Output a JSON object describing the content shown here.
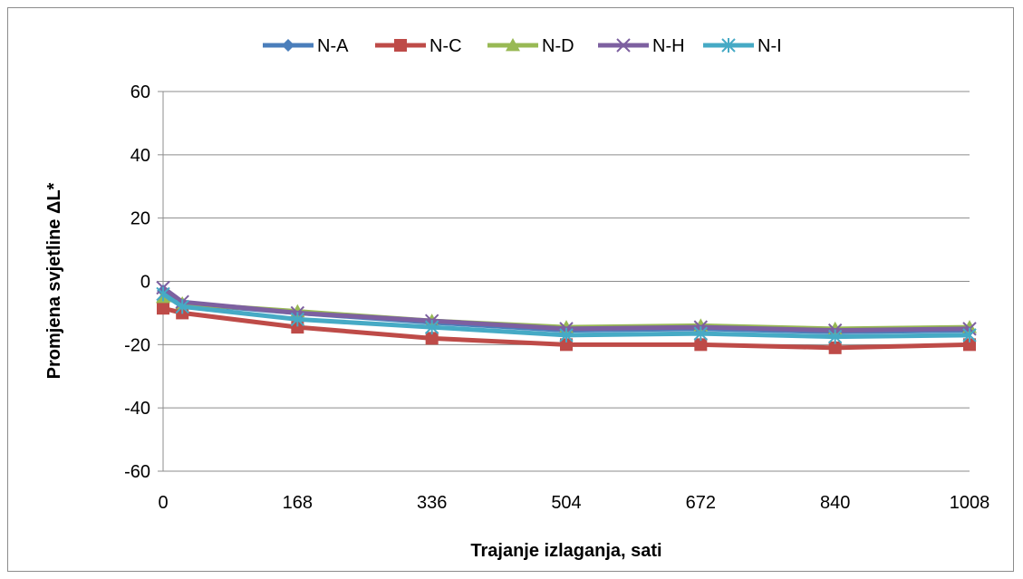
{
  "chart_data": {
    "type": "line",
    "title": "",
    "xlabel": "Trajanje izlaganja, sati",
    "ylabel": "Promjena svjetline ΔL*",
    "ylim": [
      -60,
      60
    ],
    "yticks": [
      60,
      40,
      20,
      0,
      -20,
      -40,
      -60
    ],
    "xticks": [
      0,
      168,
      336,
      504,
      672,
      840,
      1008
    ],
    "grid": true,
    "legend_position": "top",
    "x": [
      0,
      24,
      168,
      336,
      504,
      672,
      840,
      1008
    ],
    "series": [
      {
        "name": "N-A",
        "color": "#4a7ebb",
        "marker": "diamond",
        "values": [
          -3,
          -7,
          -10,
          -13,
          -15.5,
          -15,
          -16,
          -15.5
        ]
      },
      {
        "name": "N-C",
        "color": "#be4b48",
        "marker": "square",
        "values": [
          -8.5,
          -10,
          -14.5,
          -18,
          -20,
          -20,
          -21,
          -20
        ]
      },
      {
        "name": "N-D",
        "color": "#98b954",
        "marker": "triangle",
        "values": [
          -5,
          -7,
          -9.5,
          -12.5,
          -14.5,
          -14,
          -15,
          -14.5
        ]
      },
      {
        "name": "N-H",
        "color": "#7d60a0",
        "marker": "x",
        "values": [
          -2,
          -6.5,
          -10,
          -12.5,
          -15,
          -14.5,
          -15.5,
          -15
        ]
      },
      {
        "name": "N-I",
        "color": "#46aac5",
        "marker": "asterisk",
        "values": [
          -4,
          -8,
          -12,
          -14.5,
          -17,
          -16.5,
          -17.5,
          -17
        ]
      }
    ]
  }
}
